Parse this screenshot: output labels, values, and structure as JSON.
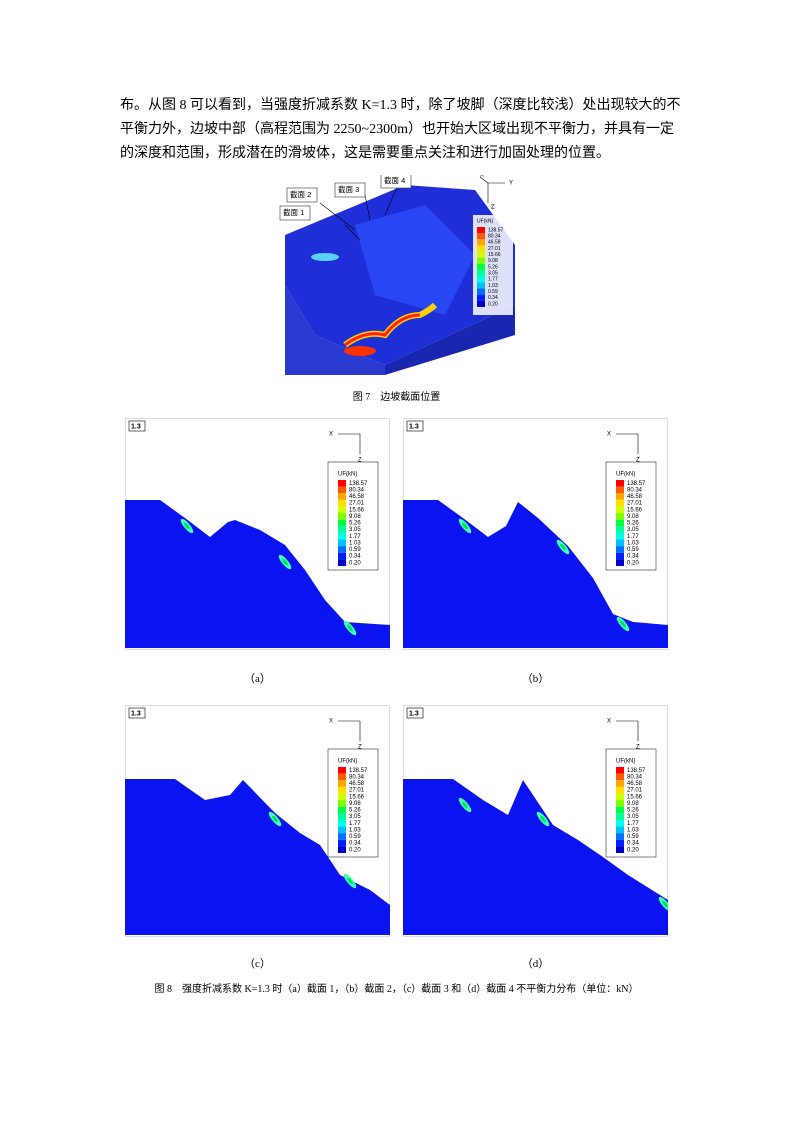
{
  "paragraph": {
    "lines": [
      "布。从图 8 可以看到，当强度折减系数 K=1.3 时，除了坡脚（深度比较浅）处出现较大的不",
      "平衡力外，边坡中部（高程范围为 2250~2300m）也开始大区域出现不平衡力，并具有一定",
      "的深度和范围，形成潜在的滑坡体，这是需要重点关注和进行加固处理的位置。"
    ]
  },
  "figure7": {
    "section_labels": [
      "截面 1",
      "截面 2",
      "截面 3",
      "截面 4"
    ],
    "axes": [
      "X",
      "Y",
      "Z"
    ],
    "legend_title": "UF(kN)",
    "legend_values": [
      "138.57",
      "80.34",
      "46.58",
      "27.01",
      "15.66",
      "9.08",
      "5.26",
      "3.05",
      "1.77",
      "1.03",
      "0.59",
      "0.34",
      "0.20"
    ],
    "caption": "图 7　边坡截面位置"
  },
  "figure8": {
    "panels": [
      {
        "tag": "1.3",
        "axes": [
          "X",
          "Z"
        ],
        "legend_title": "UF(kN)",
        "legend_values": [
          "138.57",
          "80.34",
          "46.58",
          "27.01",
          "15.66",
          "9.08",
          "5.26",
          "3.05",
          "1.77",
          "1.03",
          "0.59",
          "0.34",
          "0.20"
        ],
        "label": "（a）"
      },
      {
        "tag": "1.3",
        "axes": [
          "X",
          "Z"
        ],
        "legend_title": "UF(kN)",
        "legend_values": [
          "138.57",
          "80.34",
          "46.58",
          "27.01",
          "15.66",
          "9.08",
          "5.26",
          "3.05",
          "1.77",
          "1.03",
          "0.59",
          "0.34",
          "0.20"
        ],
        "label": "（b）"
      },
      {
        "tag": "1.3",
        "axes": [
          "X",
          "Z"
        ],
        "legend_title": "UF(kN)",
        "legend_values": [
          "138.57",
          "80.34",
          "46.58",
          "27.01",
          "15.66",
          "9.08",
          "5.26",
          "3.05",
          "1.77",
          "1.03",
          "0.59",
          "0.34",
          "0.20"
        ],
        "label": "（c）"
      },
      {
        "tag": "1.3",
        "axes": [
          "X",
          "Z"
        ],
        "legend_title": "UF(kN)",
        "legend_values": [
          "138.57",
          "80.34",
          "46.58",
          "27.01",
          "15.66",
          "9.08",
          "5.26",
          "3.05",
          "1.77",
          "1.03",
          "0.59",
          "0.34",
          "0.20"
        ],
        "label": "（d）"
      }
    ],
    "caption": "图 8　强度折减系数 K=1.3 时（a）截面 1，（b）截面 2，（c）截面 3 和（d）截面 4 不平衡力分布（单位：kN）"
  }
}
